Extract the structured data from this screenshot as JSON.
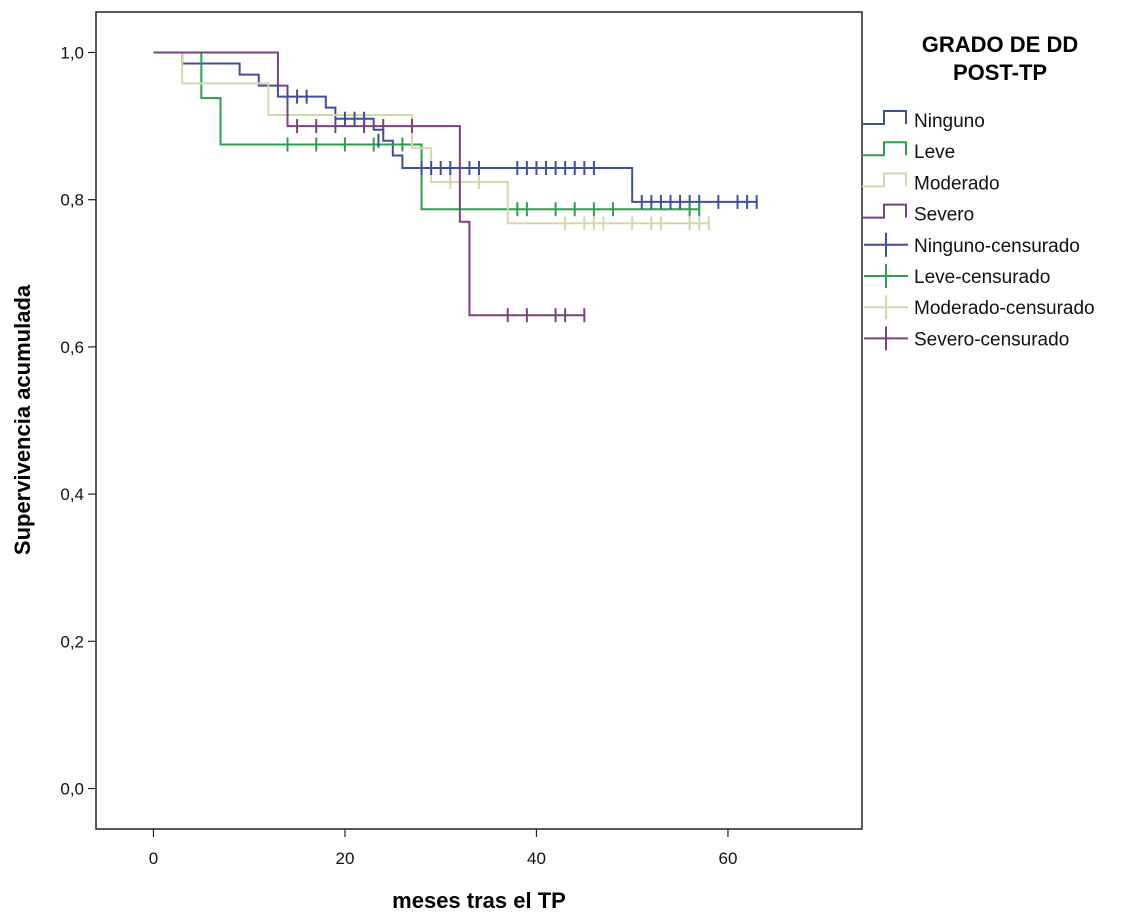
{
  "chart_data": {
    "type": "line",
    "subtype": "kaplan-meier step",
    "xlabel": "meses tras el TP",
    "ylabel": "Supervivencia acumulada",
    "xlim": [
      -6,
      74
    ],
    "ylim": [
      -0.055,
      1.055
    ],
    "xticks": [
      0,
      20,
      40,
      60
    ],
    "xtick_labels": [
      "0",
      "20",
      "40",
      "60"
    ],
    "yticks": [
      0.0,
      0.2,
      0.4,
      0.6,
      0.8,
      1.0
    ],
    "ytick_labels": [
      "0,0",
      "0,2",
      "0,4",
      "0,6",
      "0,8",
      "1,0"
    ],
    "grid": false,
    "legend": {
      "title_lines": [
        "GRADO DE DD",
        "POST-TP"
      ],
      "position": "right",
      "entries": [
        {
          "label": "Ninguno",
          "kind": "line",
          "series": 0
        },
        {
          "label": "Leve",
          "kind": "line",
          "series": 1
        },
        {
          "label": "Moderado",
          "kind": "line",
          "series": 2
        },
        {
          "label": "Severo",
          "kind": "line",
          "series": 3
        },
        {
          "label": "Ninguno-censurado",
          "kind": "censor",
          "series": 0
        },
        {
          "label": "Leve-censurado",
          "kind": "censor",
          "series": 1
        },
        {
          "label": "Moderado-censurado",
          "kind": "censor",
          "series": 2
        },
        {
          "label": "Severo-censurado",
          "kind": "censor",
          "series": 3
        }
      ]
    },
    "series": [
      {
        "name": "Ninguno",
        "color": "#3f4f9c",
        "steps": [
          [
            0,
            1.0
          ],
          [
            3,
            0.985
          ],
          [
            9,
            0.97
          ],
          [
            11,
            0.955
          ],
          [
            13,
            0.94
          ],
          [
            18,
            0.925
          ],
          [
            19,
            0.91
          ],
          [
            23,
            0.895
          ],
          [
            24,
            0.88
          ],
          [
            25,
            0.86
          ],
          [
            26,
            0.843
          ],
          [
            50,
            0.797
          ],
          [
            63,
            0.797
          ]
        ],
        "censored": [
          [
            14,
            0.94
          ],
          [
            15,
            0.94
          ],
          [
            16,
            0.94
          ],
          [
            20,
            0.91
          ],
          [
            21,
            0.91
          ],
          [
            22,
            0.91
          ],
          [
            23.5,
            0.88
          ],
          [
            28,
            0.843
          ],
          [
            29,
            0.843
          ],
          [
            30,
            0.843
          ],
          [
            31,
            0.843
          ],
          [
            33,
            0.843
          ],
          [
            34,
            0.843
          ],
          [
            38,
            0.843
          ],
          [
            39,
            0.843
          ],
          [
            40,
            0.843
          ],
          [
            41,
            0.843
          ],
          [
            42,
            0.843
          ],
          [
            43,
            0.843
          ],
          [
            44,
            0.843
          ],
          [
            45,
            0.843
          ],
          [
            46,
            0.843
          ],
          [
            51,
            0.797
          ],
          [
            52,
            0.797
          ],
          [
            53,
            0.797
          ],
          [
            54,
            0.797
          ],
          [
            55,
            0.797
          ],
          [
            56,
            0.797
          ],
          [
            57,
            0.797
          ],
          [
            59,
            0.797
          ],
          [
            61,
            0.797
          ],
          [
            62,
            0.797
          ],
          [
            63,
            0.797
          ]
        ]
      },
      {
        "name": "Leve",
        "color": "#2e9e4a",
        "steps": [
          [
            0,
            1.0
          ],
          [
            5,
            0.938
          ],
          [
            7,
            0.875
          ],
          [
            28,
            0.787
          ],
          [
            57,
            0.787
          ]
        ],
        "censored": [
          [
            14,
            0.875
          ],
          [
            17,
            0.875
          ],
          [
            20,
            0.875
          ],
          [
            23,
            0.875
          ],
          [
            26,
            0.875
          ],
          [
            38,
            0.787
          ],
          [
            39,
            0.787
          ],
          [
            42,
            0.787
          ],
          [
            44,
            0.787
          ],
          [
            46,
            0.787
          ],
          [
            48,
            0.787
          ],
          [
            56,
            0.787
          ],
          [
            57,
            0.787
          ]
        ]
      },
      {
        "name": "Moderado",
        "color": "#d6d6a6",
        "steps": [
          [
            0,
            1.0
          ],
          [
            3,
            0.958
          ],
          [
            12,
            0.915
          ],
          [
            27,
            0.87
          ],
          [
            29,
            0.824
          ],
          [
            37,
            0.768
          ],
          [
            58,
            0.768
          ]
        ],
        "censored": [
          [
            31,
            0.824
          ],
          [
            34,
            0.824
          ],
          [
            43,
            0.768
          ],
          [
            45,
            0.768
          ],
          [
            46,
            0.768
          ],
          [
            47,
            0.768
          ],
          [
            50,
            0.768
          ],
          [
            52,
            0.768
          ],
          [
            53,
            0.768
          ],
          [
            56,
            0.768
          ],
          [
            57,
            0.768
          ],
          [
            58,
            0.768
          ]
        ]
      },
      {
        "name": "Severo",
        "color": "#7b3f84",
        "steps": [
          [
            0,
            1.0
          ],
          [
            13,
            0.955
          ],
          [
            14,
            0.9
          ],
          [
            32,
            0.77
          ],
          [
            33,
            0.643
          ],
          [
            45,
            0.643
          ]
        ],
        "censored": [
          [
            15,
            0.9
          ],
          [
            17,
            0.9
          ],
          [
            19,
            0.9
          ],
          [
            22,
            0.9
          ],
          [
            24,
            0.9
          ],
          [
            27,
            0.9
          ],
          [
            37,
            0.643
          ],
          [
            39,
            0.643
          ],
          [
            42,
            0.643
          ],
          [
            43,
            0.643
          ],
          [
            45,
            0.643
          ]
        ]
      }
    ]
  }
}
